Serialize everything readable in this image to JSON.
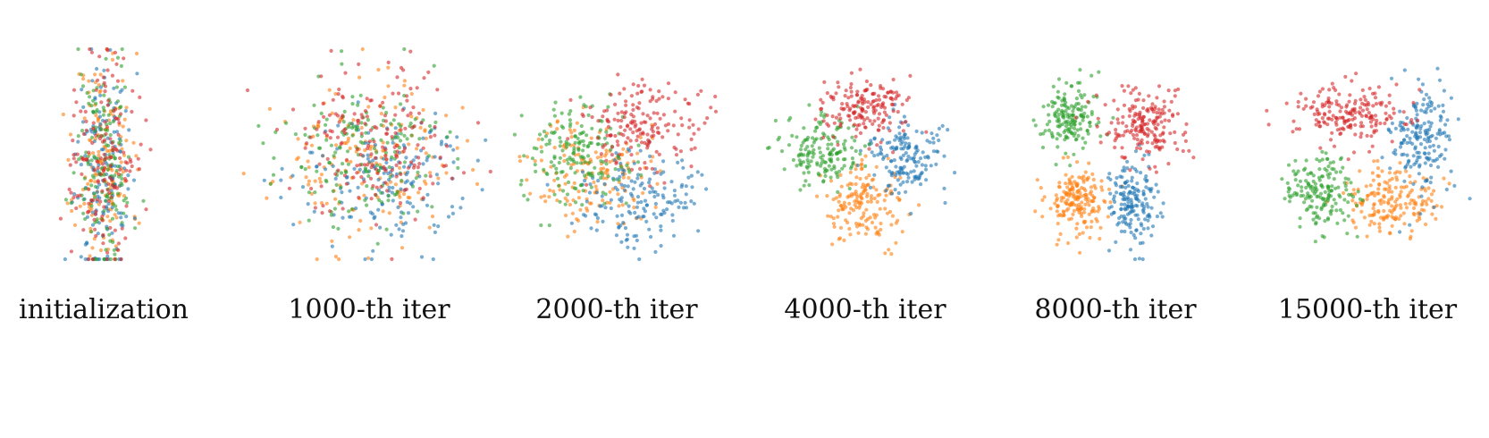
{
  "chart_data": [
    {
      "type": "scatter",
      "title": "initialization",
      "series": [
        {
          "color": "#ff7f0e",
          "center": [
            0.0,
            0.0
          ],
          "sd": [
            0.16,
            0.62
          ],
          "n": 150
        },
        {
          "color": "#1f77b4",
          "center": [
            0.0,
            -0.05
          ],
          "sd": [
            0.16,
            0.6
          ],
          "n": 150
        },
        {
          "color": "#2ca02c",
          "center": [
            0.0,
            0.05
          ],
          "sd": [
            0.16,
            0.62
          ],
          "n": 150
        },
        {
          "color": "#d62728",
          "center": [
            0.0,
            0.08
          ],
          "sd": [
            0.17,
            0.6
          ],
          "n": 160
        }
      ]
    },
    {
      "type": "scatter",
      "title": "1000-th iter",
      "series": [
        {
          "color": "#ff7f0e",
          "center": [
            -0.05,
            -0.05
          ],
          "sd": [
            0.5,
            0.42
          ],
          "n": 170
        },
        {
          "color": "#1f77b4",
          "center": [
            0.18,
            -0.2
          ],
          "sd": [
            0.46,
            0.4
          ],
          "n": 170
        },
        {
          "color": "#2ca02c",
          "center": [
            -0.12,
            0.05
          ],
          "sd": [
            0.48,
            0.42
          ],
          "n": 170
        },
        {
          "color": "#d62728",
          "center": [
            0.05,
            0.15
          ],
          "sd": [
            0.45,
            0.4
          ],
          "n": 180
        }
      ]
    },
    {
      "type": "scatter",
      "title": "2000-th iter",
      "series": [
        {
          "color": "#ff7f0e",
          "center": [
            -0.3,
            -0.15
          ],
          "sd": [
            0.33,
            0.3
          ],
          "n": 160
        },
        {
          "color": "#1f77b4",
          "center": [
            0.25,
            -0.4
          ],
          "sd": [
            0.33,
            0.28
          ],
          "n": 160
        },
        {
          "color": "#2ca02c",
          "center": [
            -0.42,
            0.08
          ],
          "sd": [
            0.3,
            0.28
          ],
          "n": 170
        },
        {
          "color": "#d62728",
          "center": [
            0.3,
            0.35
          ],
          "sd": [
            0.33,
            0.26
          ],
          "n": 170
        }
      ]
    },
    {
      "type": "scatter",
      "title": "4000-th iter",
      "series": [
        {
          "color": "#ff7f0e",
          "center": [
            0.0,
            -0.5
          ],
          "sd": [
            0.23,
            0.22
          ],
          "n": 160
        },
        {
          "color": "#1f77b4",
          "center": [
            0.45,
            0.02
          ],
          "sd": [
            0.22,
            0.22
          ],
          "n": 160
        },
        {
          "color": "#2ca02c",
          "center": [
            -0.5,
            0.08
          ],
          "sd": [
            0.22,
            0.22
          ],
          "n": 160
        },
        {
          "color": "#d62728",
          "center": [
            0.0,
            0.58
          ],
          "sd": [
            0.24,
            0.18
          ],
          "n": 170
        }
      ]
    },
    {
      "type": "scatter",
      "title": "8000-th iter",
      "series": [
        {
          "color": "#ff7f0e",
          "center": [
            -0.42,
            -0.48
          ],
          "sd": [
            0.18,
            0.2
          ],
          "n": 180
        },
        {
          "color": "#1f77b4",
          "center": [
            0.22,
            -0.5
          ],
          "sd": [
            0.15,
            0.24
          ],
          "n": 170
        },
        {
          "color": "#2ca02c",
          "center": [
            -0.5,
            0.45
          ],
          "sd": [
            0.17,
            0.2
          ],
          "n": 160
        },
        {
          "color": "#d62728",
          "center": [
            0.32,
            0.4
          ],
          "sd": [
            0.22,
            0.22
          ],
          "n": 190
        }
      ]
    },
    {
      "type": "scatter",
      "title": "15000-th iter",
      "series": [
        {
          "color": "#ff7f0e",
          "center": [
            0.25,
            -0.5
          ],
          "sd": [
            0.24,
            0.18
          ],
          "n": 180
        },
        {
          "color": "#1f77b4",
          "center": [
            0.6,
            0.2
          ],
          "sd": [
            0.16,
            0.3
          ],
          "n": 180
        },
        {
          "color": "#2ca02c",
          "center": [
            -0.52,
            -0.35
          ],
          "sd": [
            0.2,
            0.2
          ],
          "n": 170
        },
        {
          "color": "#d62728",
          "center": [
            -0.2,
            0.5
          ],
          "sd": [
            0.34,
            0.16
          ],
          "n": 190
        }
      ]
    }
  ]
}
